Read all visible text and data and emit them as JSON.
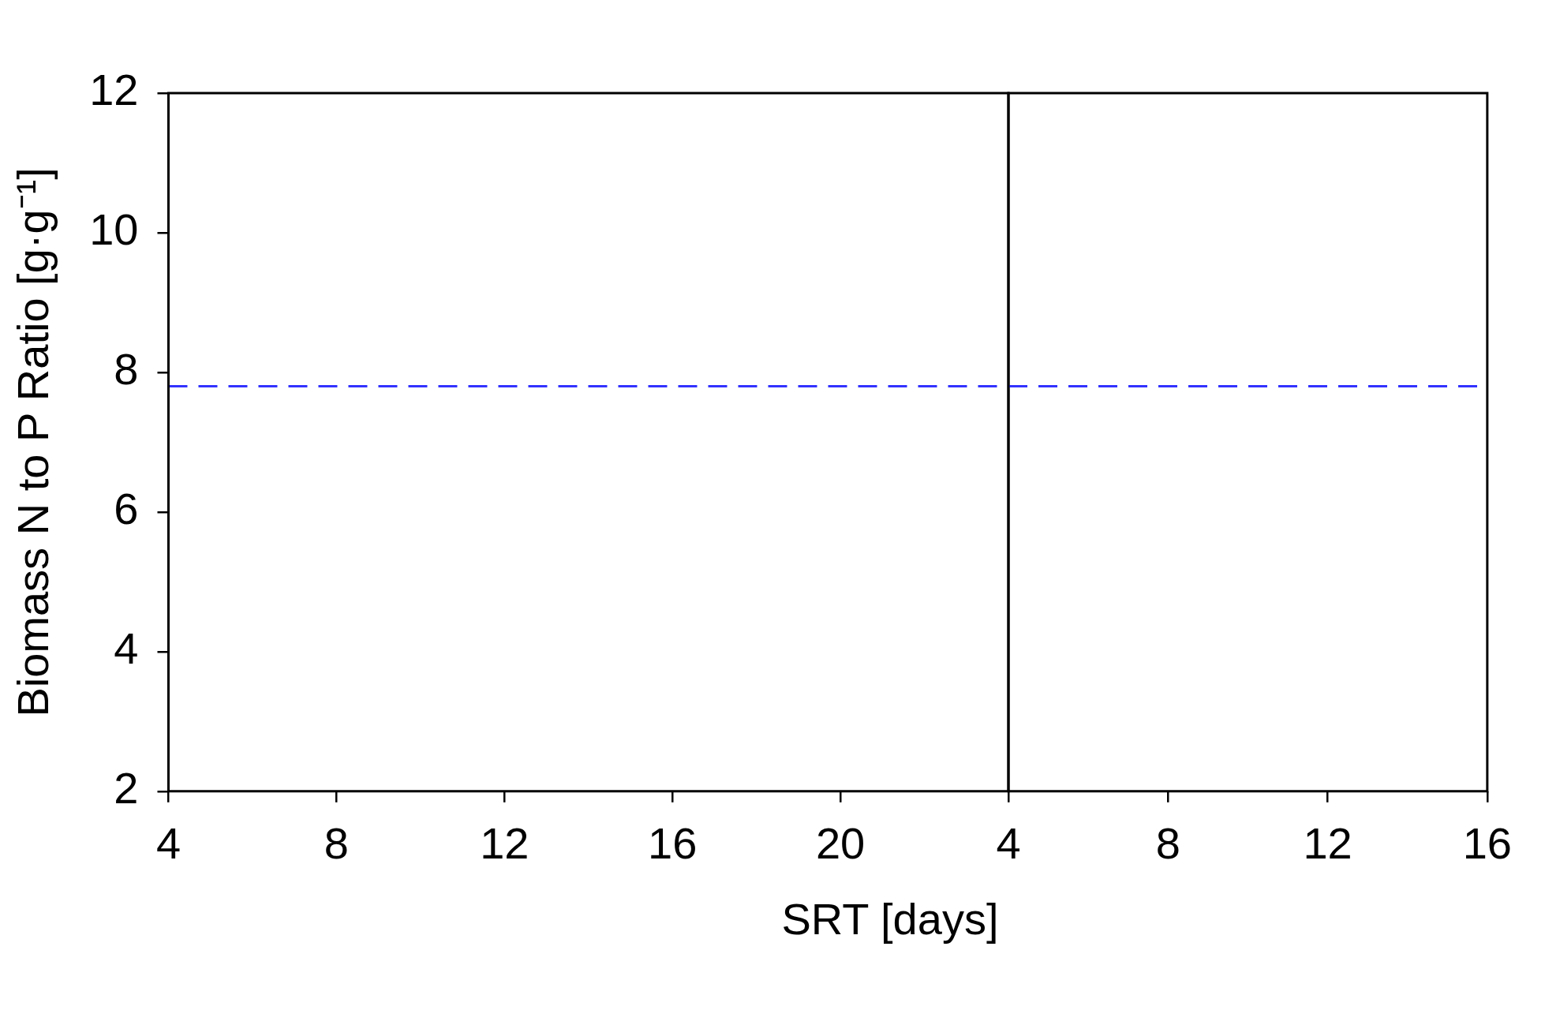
{
  "chart_data": [
    {
      "type": "line",
      "ylabel": "Biomass N to P Ratio [g·g⁻¹]",
      "xlabel": "SRT [days]",
      "xlim": [
        4,
        24
      ],
      "xticks": [
        4,
        8,
        12,
        16,
        20
      ],
      "ylim": [
        2,
        12
      ],
      "yticks": [
        2,
        4,
        6,
        8,
        10,
        12
      ],
      "ref_lines": [
        {
          "axis": "y",
          "value": 7.8,
          "color": "#3333ff",
          "line_style": "dashed"
        }
      ]
    },
    {
      "type": "line",
      "xlim": [
        4,
        16
      ],
      "xticks": [
        4,
        8,
        12,
        16
      ],
      "ylim": [
        2,
        12
      ],
      "yticks": [
        2,
        4,
        6,
        8,
        10,
        12
      ],
      "tick_labels": "x",
      "ref_lines": [
        {
          "axis": "y",
          "value": 7.8,
          "color": "#3333ff",
          "line_style": "dashed"
        }
      ]
    }
  ]
}
